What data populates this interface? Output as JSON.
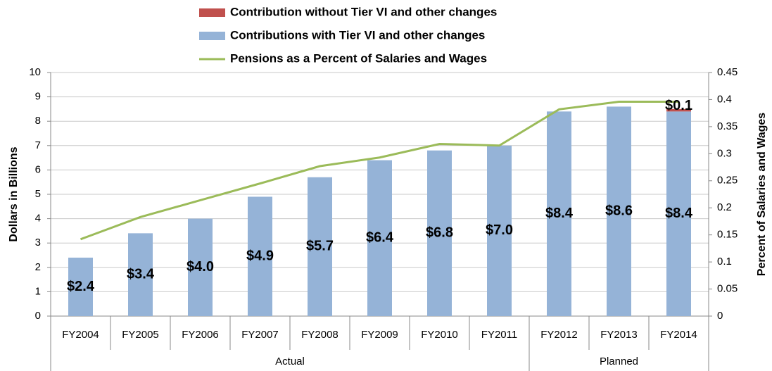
{
  "chart_data": {
    "type": "bar",
    "stacked": true,
    "categories": [
      "FY2004",
      "FY2005",
      "FY2006",
      "FY2007",
      "FY2008",
      "FY2009",
      "FY2010",
      "FY2011",
      "FY2012",
      "FY2013",
      "FY2014"
    ],
    "groups": [
      "Actual",
      "Actual",
      "Actual",
      "Actual",
      "Actual",
      "Actual",
      "Actual",
      "Actual",
      "Planned",
      "Planned",
      "Planned"
    ],
    "y_label": "Dollars in Billions",
    "y2_label": "Percent of Salaries and Wages",
    "ylim": [
      0,
      10
    ],
    "yticks": [
      0,
      1,
      2,
      3,
      4,
      5,
      6,
      7,
      8,
      9,
      10
    ],
    "y2lim": [
      0,
      0.45
    ],
    "y2ticks": [
      0,
      0.05,
      0.1,
      0.15,
      0.2,
      0.25,
      0.3,
      0.35,
      0.4,
      0.45
    ],
    "grid": true,
    "series": [
      {
        "name": "Contributions with Tier VI and other changes",
        "color": "#95b3d7",
        "type": "bar",
        "values": [
          2.4,
          3.4,
          4.0,
          4.9,
          5.7,
          6.4,
          6.8,
          7.0,
          8.4,
          8.6,
          8.4
        ],
        "value_labels": [
          "$2.4",
          "$3.4",
          "$4.0",
          "$4.9",
          "$5.7",
          "$6.4",
          "$6.8",
          "$7.0",
          "$8.4",
          "$8.6",
          "$8.4"
        ]
      },
      {
        "name": "Contribution without Tier VI and other changes",
        "color": "#c0504d",
        "type": "bar",
        "values": [
          null,
          null,
          null,
          null,
          null,
          null,
          null,
          null,
          null,
          null,
          0.1
        ],
        "value_labels": [
          null,
          null,
          null,
          null,
          null,
          null,
          null,
          null,
          null,
          null,
          "$0.1"
        ]
      },
      {
        "name": "Pensions as a Percent of Salaries and Wages",
        "color": "#9bbb59",
        "type": "line",
        "axis": "y2",
        "values": [
          0.142,
          0.183,
          0.214,
          0.245,
          0.277,
          0.293,
          0.318,
          0.315,
          0.382,
          0.396,
          0.396
        ]
      }
    ]
  }
}
